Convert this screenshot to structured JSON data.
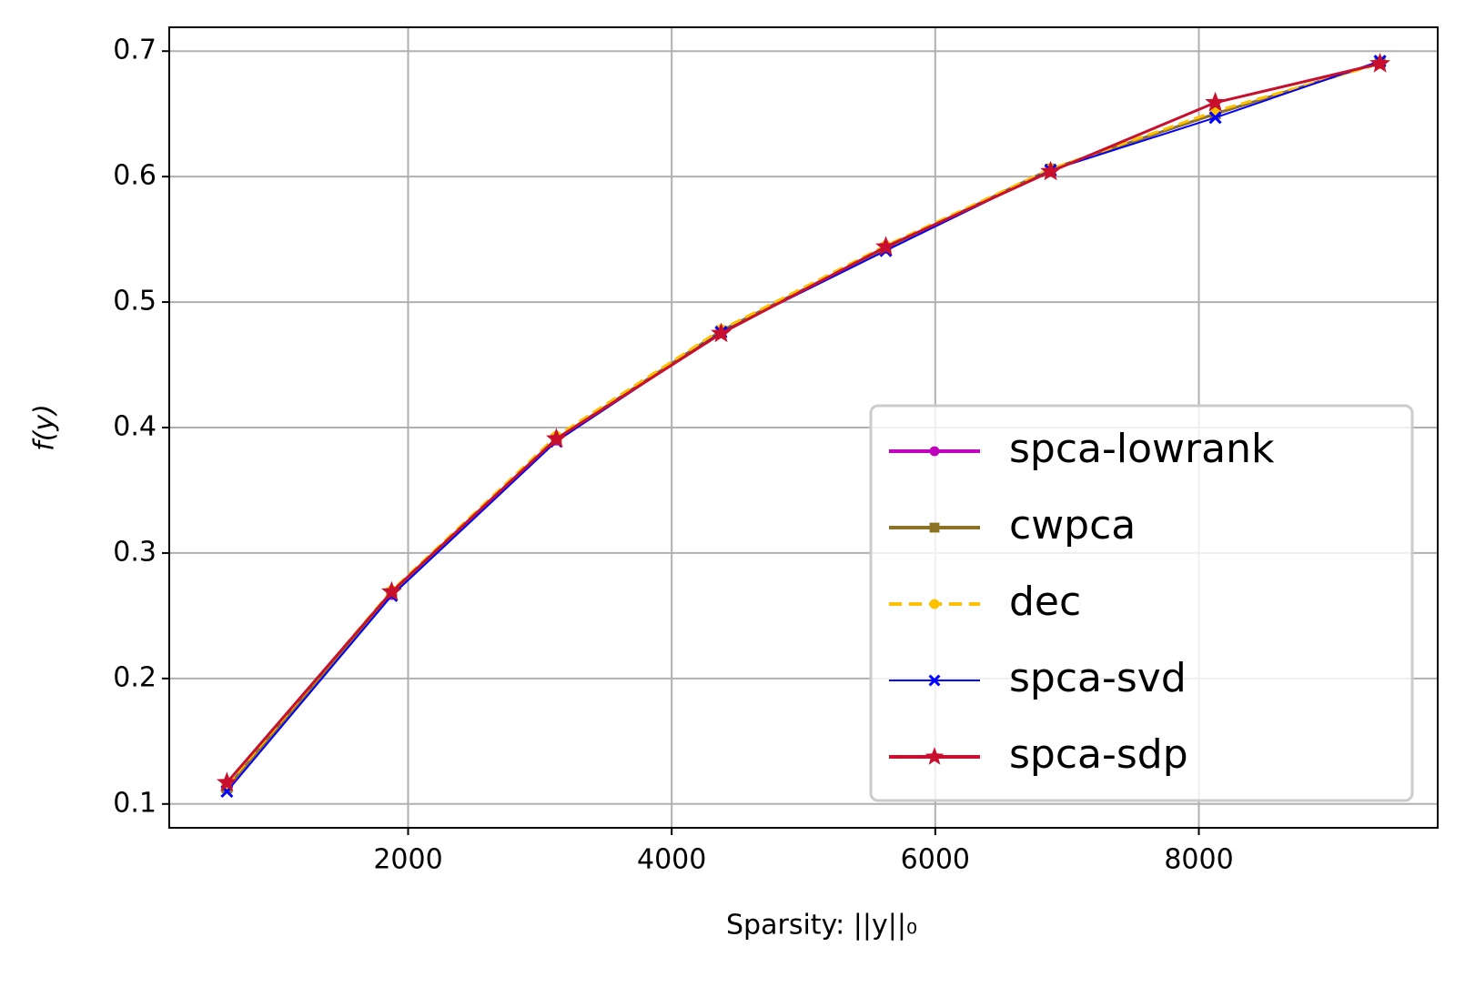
{
  "chart_data": {
    "type": "line",
    "x_label": "Sparsity: ||y||₀",
    "y_label": "f(y)",
    "x": [
      625,
      1875,
      3125,
      4375,
      5625,
      6875,
      8125,
      9375
    ],
    "series": [
      {
        "name": "spca-lowrank",
        "color": "#bf00bf",
        "marker": "circle",
        "linestyle": "solid",
        "values": [
          0.113,
          0.267,
          0.39,
          0.477,
          0.543,
          0.606,
          0.65,
          0.691
        ]
      },
      {
        "name": "cwpca",
        "color": "#8c7324",
        "marker": "square",
        "linestyle": "solid",
        "values": [
          0.113,
          0.268,
          0.391,
          0.477,
          0.543,
          0.606,
          0.65,
          0.691
        ]
      },
      {
        "name": "dec",
        "color": "#ffc000",
        "marker": "circle",
        "linestyle": "dashed",
        "values": [
          0.115,
          0.27,
          0.393,
          0.478,
          0.545,
          0.606,
          0.652,
          0.69
        ]
      },
      {
        "name": "spca-svd",
        "color": "#0000ff",
        "marker": "x",
        "linestyle": "solid",
        "values": [
          0.11,
          0.266,
          0.389,
          0.476,
          0.541,
          0.605,
          0.647,
          0.692
        ]
      },
      {
        "name": "spca-sdp",
        "color": "#c8102e",
        "marker": "star",
        "linestyle": "solid",
        "values": [
          0.117,
          0.269,
          0.391,
          0.475,
          0.544,
          0.604,
          0.659,
          0.69
        ]
      }
    ],
    "xlim": [
      187.5,
      9812.5
    ],
    "xticks": [
      2000,
      4000,
      6000,
      8000
    ],
    "ylim": [
      0.081,
      0.719
    ],
    "yticks": [
      0.1,
      0.2,
      0.3,
      0.4,
      0.5,
      0.6,
      0.7
    ],
    "grid": true,
    "legend_position": "lower right"
  }
}
